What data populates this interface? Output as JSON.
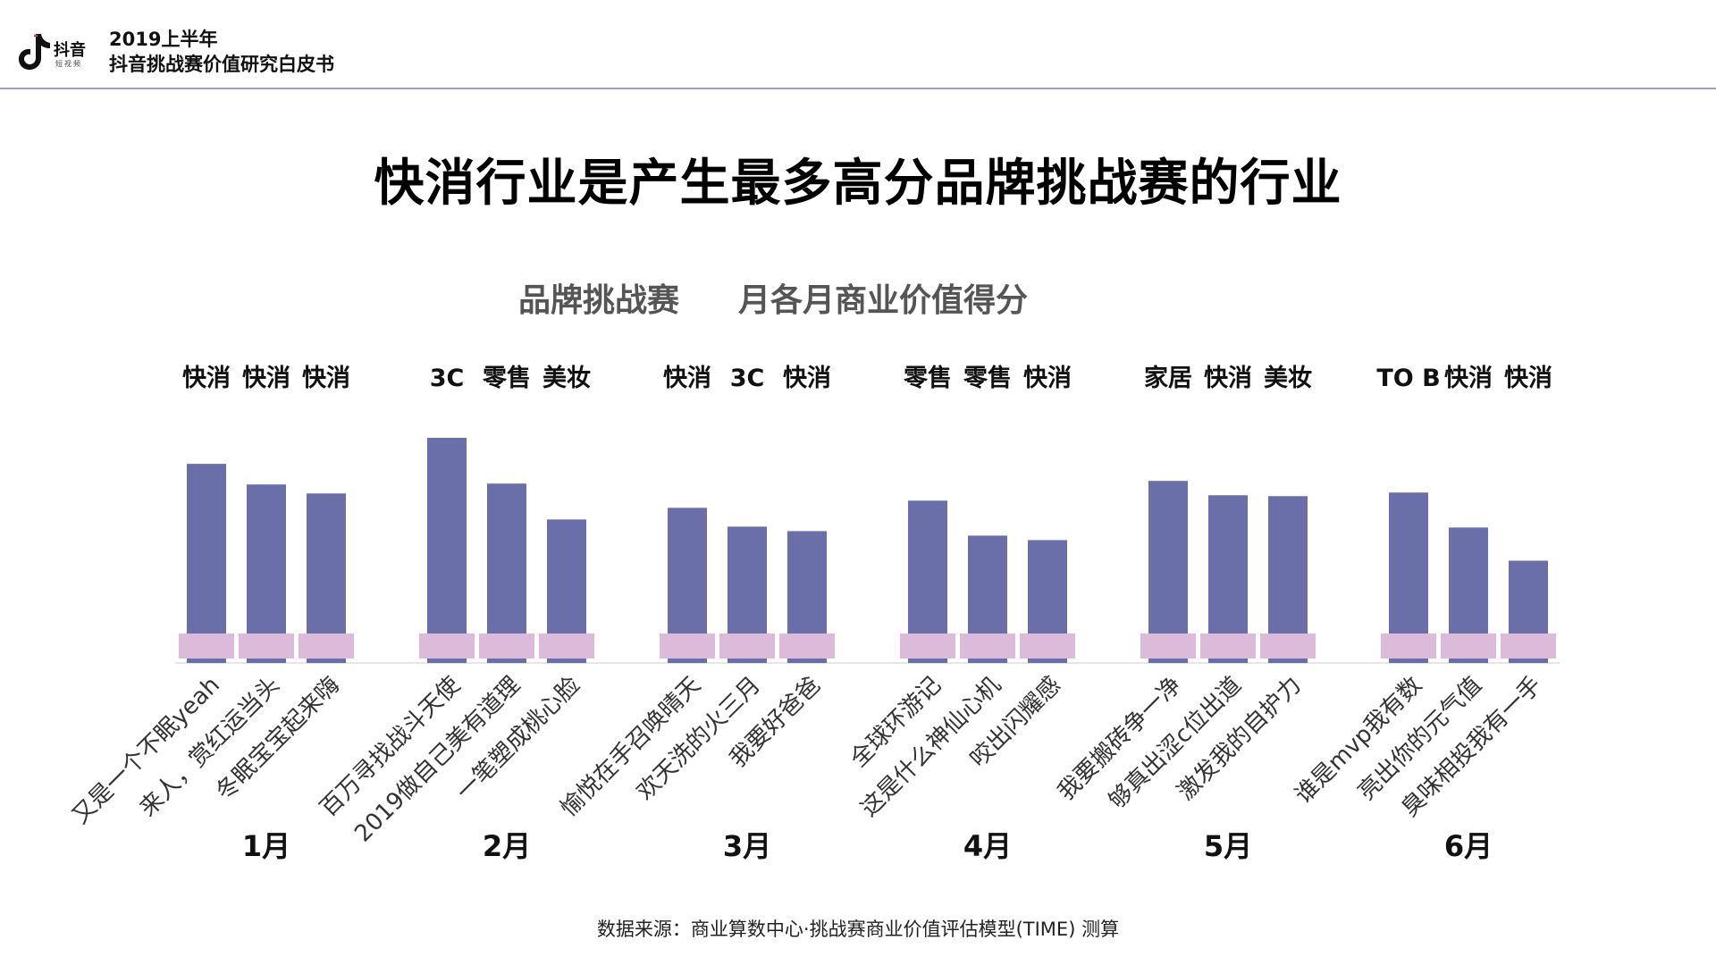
{
  "header": {
    "logo_text": "抖音",
    "logo_sub": "短视频",
    "report_year": "2019上半年",
    "report_title": "抖音挑战赛价值研究白皮书"
  },
  "main_title": "快消行业是产生最多高分品牌挑战赛的行业",
  "subtitle_left": "品牌挑战赛",
  "subtitle_right": "月各月商业价值得分",
  "source": "数据来源：商业算数中心·挑战赛商业价值评估模型(TIME) 测算",
  "colors": {
    "bar": "#6a6faa",
    "label_band": "#dcbad9"
  },
  "chart_data": {
    "type": "bar",
    "groups": [
      {
        "month": "1月",
        "bars": [
          {
            "label": "又是一个不眠yeah",
            "industry": "快消",
            "value": 222
          },
          {
            "label": "来人，赏红运当头",
            "industry": "快消",
            "value": 199
          },
          {
            "label": "冬眠宝宝起来嗨",
            "industry": "快消",
            "value": 189
          }
        ]
      },
      {
        "month": "2月",
        "bars": [
          {
            "label": "百万寻找战斗天使",
            "industry": "3C",
            "value": 251
          },
          {
            "label": "2019做自己美有道理",
            "industry": "零售",
            "value": 200
          },
          {
            "label": "一笔塑成桃心脸",
            "industry": "美妆",
            "value": 160
          }
        ]
      },
      {
        "month": "3月",
        "bars": [
          {
            "label": "愉悦在手召唤晴天",
            "industry": "快消",
            "value": 173
          },
          {
            "label": "欢天洗的火三月",
            "industry": "3C",
            "value": 152
          },
          {
            "label": "我要好爸爸",
            "industry": "快消",
            "value": 147
          }
        ]
      },
      {
        "month": "4月",
        "bars": [
          {
            "label": "全球环游记",
            "industry": "零售",
            "value": 181
          },
          {
            "label": "这是什么神仙心机",
            "industry": "零售",
            "value": 142
          },
          {
            "label": "咬出闪耀感",
            "industry": "快消",
            "value": 137
          }
        ]
      },
      {
        "month": "5月",
        "bars": [
          {
            "label": "我要搬砖争一净",
            "industry": "家居",
            "value": 203
          },
          {
            "label": "够真出涩c位出道",
            "industry": "快消",
            "value": 187
          },
          {
            "label": "激发我的自护力",
            "industry": "美妆",
            "value": 186
          }
        ]
      },
      {
        "month": "6月",
        "bars": [
          {
            "label": "谁是mvp我有数",
            "industry": "TO B",
            "value": 190
          },
          {
            "label": "亮出你的元气值",
            "industry": "快消",
            "value": 151
          },
          {
            "label": "臭味相投我有一手",
            "industry": "快消",
            "value": 114
          }
        ]
      }
    ]
  }
}
